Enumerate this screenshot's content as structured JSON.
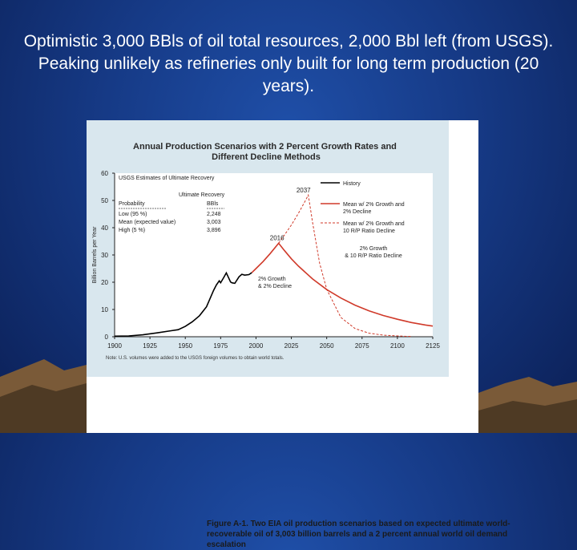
{
  "slide": {
    "title": "Optimistic 3,000 BBls of oil total resources, 2,000 Bbl left (from USGS). Peaking unlikely as refineries only built for long term production (20 years)."
  },
  "figure": {
    "caption": "Figure A-1. Two EIA oil production scenarios based on expected ultimate world-recoverable oil of 3,003 billion barrels and a 2 percent annual world oil demand escalation"
  },
  "colors": {
    "slide_background": "#163a86",
    "chart_background": "#d9e7ee",
    "history_line": "#000000",
    "scenario_line": "#d03a2a"
  },
  "chart_data": {
    "type": "line",
    "title": "Annual Production Scenarios with 2 Percent Growth Rates and Different Decline Methods",
    "xlabel": "",
    "ylabel": "Billion Barrels per Year",
    "xlim": [
      1900,
      2125
    ],
    "ylim": [
      0,
      60
    ],
    "x_ticks": [
      1900,
      1925,
      1950,
      1975,
      2000,
      2025,
      2050,
      2075,
      2100,
      2125
    ],
    "y_ticks": [
      0,
      10,
      20,
      30,
      40,
      50,
      60
    ],
    "grid": false,
    "legend_position": "top-right",
    "series": [
      {
        "name": "History",
        "style": "solid",
        "color": "#000000",
        "x": [
          1900,
          1910,
          1920,
          1930,
          1940,
          1945,
          1950,
          1955,
          1960,
          1965,
          1970,
          1972,
          1974,
          1975,
          1977,
          1979,
          1980,
          1982,
          1983,
          1985,
          1988,
          1990,
          1992,
          1995,
          1997
        ],
        "y": [
          0.2,
          0.3,
          0.7,
          1.4,
          2.2,
          2.6,
          3.8,
          5.5,
          7.7,
          11.0,
          17.0,
          19.0,
          20.5,
          19.8,
          21.6,
          23.4,
          22.3,
          20.1,
          19.8,
          19.6,
          22.0,
          22.9,
          22.6,
          22.8,
          23.5
        ]
      },
      {
        "name": "Mean w/ 2% Growth and 2% Decline",
        "style": "solid",
        "color": "#d03a2a",
        "x": [
          1997,
          2000,
          2005,
          2010,
          2016,
          2020,
          2025,
          2030,
          2040,
          2050,
          2060,
          2070,
          2080,
          2090,
          2100,
          2110,
          2120,
          2125
        ],
        "y": [
          23.5,
          25.0,
          27.6,
          30.5,
          34.3,
          31.7,
          28.6,
          25.9,
          21.2,
          17.3,
          14.2,
          11.6,
          9.5,
          7.8,
          6.4,
          5.2,
          4.3,
          3.9
        ]
      },
      {
        "name": "Mean w/ 2% Growth and 10 R/P Ratio Decline",
        "style": "dashed",
        "color": "#d03a2a",
        "x": [
          2016,
          2020,
          2025,
          2030,
          2035,
          2037,
          2040,
          2045,
          2050,
          2060,
          2070,
          2080,
          2090,
          2100,
          2110
        ],
        "y": [
          34.3,
          37.2,
          41.0,
          45.3,
          50.0,
          52.0,
          42.0,
          27.0,
          17.4,
          7.1,
          3.0,
          1.3,
          0.6,
          0.3,
          0.1
        ]
      }
    ],
    "annotations": {
      "peak_2037": "2037",
      "peak_2016": "2016",
      "label_rp": "2% Growth & 10 R/P Ratio Decline",
      "label_2pct": "2% Growth & 2% Decline"
    },
    "usgs_table": {
      "heading": "USGS Estimates of Ultimate Recovery",
      "col_probability": "Probability",
      "col_recovery": "Ultimate Recovery",
      "col_unit": "BBls",
      "rows": [
        {
          "probability": "Low (95 %)",
          "value": "2,248"
        },
        {
          "probability": "Mean (expected value)",
          "value": "3,003"
        },
        {
          "probability": "High (5 %)",
          "value": "3,896"
        }
      ]
    },
    "note": "Note: U.S. volumes were added to the USGS foreign volumes to obtain world totals."
  }
}
